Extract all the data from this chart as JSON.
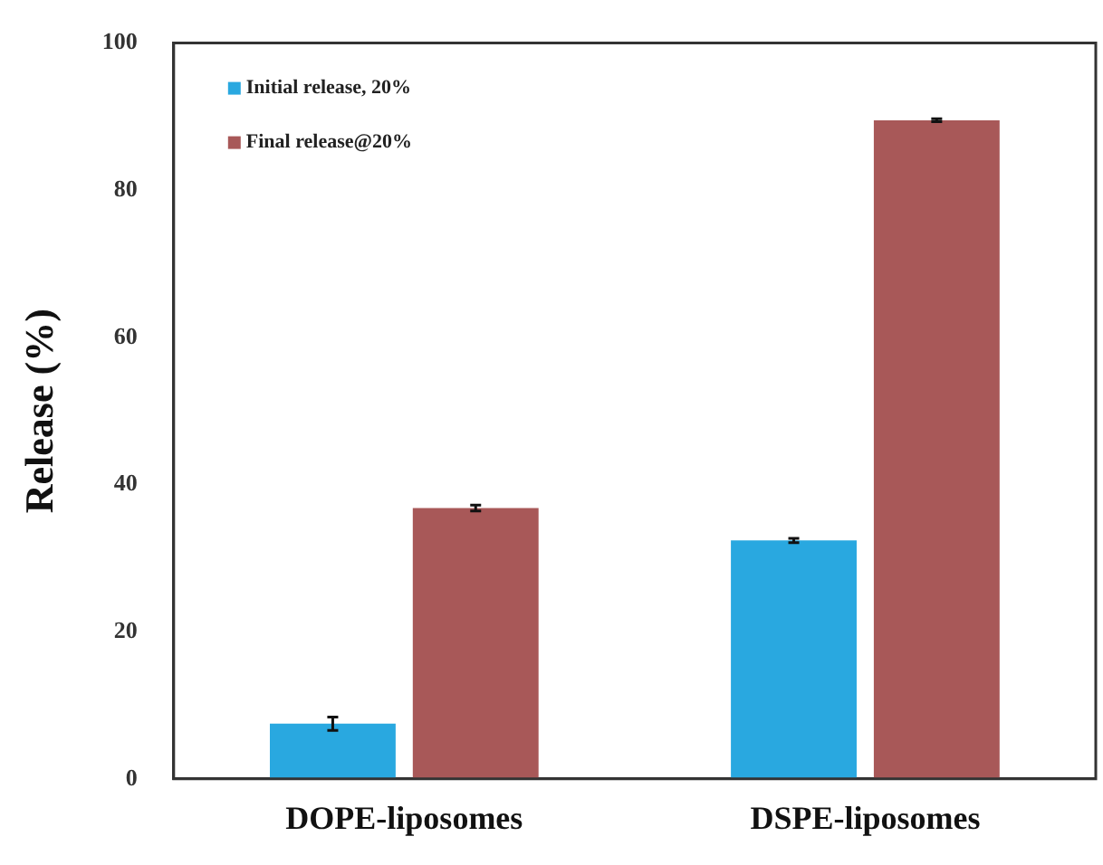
{
  "chart_data": {
    "type": "bar",
    "ylabel": "Release (%)",
    "categories": [
      "DOPE-liposomes",
      "DSPE-liposomes"
    ],
    "series": [
      {
        "name": "Initial release, 20%",
        "color": "#29a8e0",
        "values": [
          7.5,
          32.4
        ],
        "errors": [
          0.9,
          0.3
        ]
      },
      {
        "name": "Final release@20%",
        "color": "#a85858",
        "values": [
          36.8,
          89.5
        ],
        "errors": [
          0.4,
          0.2
        ]
      }
    ],
    "ylim": [
      0,
      100
    ],
    "yticks": [
      0,
      20,
      40,
      60,
      80,
      100
    ],
    "grid": false,
    "legend": "top left"
  }
}
